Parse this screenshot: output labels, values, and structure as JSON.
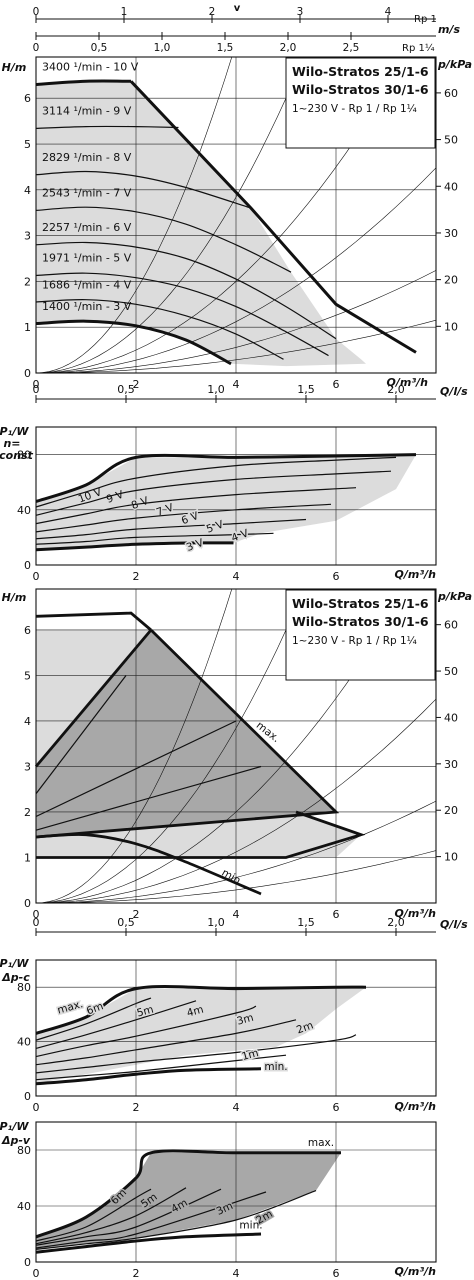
{
  "chart_data": [
    {
      "type": "line",
      "id": "velocity_scale",
      "xlabel": "v",
      "unit": "m/s",
      "rp1_ticks": [
        "0",
        "1",
        "2",
        "3",
        "4"
      ],
      "rp1_label": "Rp 1",
      "rp114_ticks": [
        "0",
        "0,5",
        "1,0",
        "1,5",
        "2,0",
        "2,5"
      ],
      "rp114_label": "Rp 1¼"
    },
    {
      "type": "line",
      "id": "hq_const_speed",
      "ylabel": "H/m",
      "ylabel2": "p/kPa",
      "xlabel": "Q/m³/h",
      "xlabel_top": "Q/l/s",
      "xlim": [
        0,
        8
      ],
      "ylim": [
        0,
        6.9
      ],
      "x_ticks": [
        "0",
        "2",
        "4",
        "6"
      ],
      "y_ticks": [
        "0",
        "1",
        "2",
        "3",
        "4",
        "5",
        "6"
      ],
      "kpa_ticks": [
        "10",
        "20",
        "30",
        "40",
        "50",
        "60"
      ],
      "ls_ticks": [
        "0",
        "0,5",
        "1,0",
        "1,5",
        "2,0"
      ],
      "legend_title": [
        "Wilo-Stratos 25/1-6",
        "Wilo-Stratos 30/1-6"
      ],
      "legend_sub": "1~230 V - Rp 1 / Rp 1¼",
      "series": [
        {
          "name": "3400 ¹/min - 10 V",
          "x": [
            0,
            1,
            1.9
          ],
          "y": [
            6.3,
            6.37,
            6.37
          ]
        },
        {
          "name": "3114 ¹/min - 9 V",
          "x": [
            0,
            1,
            2,
            2.85
          ],
          "y": [
            5.34,
            5.38,
            5.38,
            5.36
          ]
        },
        {
          "name": "2829 ¹/min - 8 V",
          "x": [
            0,
            1,
            2,
            3,
            4.3
          ],
          "y": [
            4.33,
            4.4,
            4.3,
            4.05,
            3.6
          ]
        },
        {
          "name": "2543 ¹/min - 7 V",
          "x": [
            0,
            1,
            2,
            3,
            4,
            4.75,
            5.1
          ],
          "y": [
            3.55,
            3.62,
            3.52,
            3.25,
            2.8,
            2.4,
            2.2
          ]
        },
        {
          "name": "2257 ¹/min - 6 V",
          "x": [
            0,
            1,
            2,
            3,
            4,
            5,
            6
          ],
          "y": [
            2.8,
            2.85,
            2.75,
            2.5,
            2.05,
            1.45,
            0.75
          ]
        },
        {
          "name": "1971 ¹/min - 5 V",
          "x": [
            0,
            1,
            2,
            3,
            4,
            5,
            5.85
          ],
          "y": [
            2.13,
            2.18,
            2.08,
            1.85,
            1.45,
            0.9,
            0.38
          ]
        },
        {
          "name": "1686 ¹/min - 4 V",
          "x": [
            0,
            1,
            2,
            3,
            4,
            4.95
          ],
          "y": [
            1.55,
            1.6,
            1.5,
            1.25,
            0.85,
            0.3
          ]
        },
        {
          "name": "1400 ¹/min - 3 V",
          "x": [
            0,
            1,
            2,
            3,
            3.9
          ],
          "y": [
            1.08,
            1.13,
            1.03,
            0.72,
            0.2
          ]
        }
      ]
    },
    {
      "type": "line",
      "id": "power_const_speed",
      "ylabel": "P₁/W",
      "ylabel_mode": [
        "n=",
        "const"
      ],
      "xlabel": "Q/m³/h",
      "xlim": [
        0,
        8
      ],
      "ylim": [
        0,
        100
      ],
      "x_ticks": [
        "0",
        "2",
        "4",
        "6"
      ],
      "y_ticks": [
        "0",
        "40",
        "80"
      ],
      "series": [
        {
          "name": "10 V",
          "x": [
            0,
            1,
            2,
            4,
            6,
            7.6
          ],
          "y": [
            46,
            58,
            78,
            78,
            79,
            80
          ]
        },
        {
          "name": "9 V",
          "x": [
            0,
            1,
            2,
            4,
            6,
            7.2
          ],
          "y": [
            42,
            53,
            63,
            72,
            76,
            78
          ]
        },
        {
          "name": "8 V",
          "x": [
            0,
            1,
            2,
            4,
            6,
            7.1
          ],
          "y": [
            36,
            45,
            54,
            62,
            66,
            68
          ]
        },
        {
          "name": "7 V",
          "x": [
            0,
            1,
            2,
            4,
            6.4
          ],
          "y": [
            30,
            37,
            44,
            51,
            56
          ]
        },
        {
          "name": "6 V",
          "x": [
            0,
            1,
            2,
            4,
            5.9
          ],
          "y": [
            24,
            29,
            34,
            40,
            44
          ]
        },
        {
          "name": "5 V",
          "x": [
            0,
            1,
            2,
            4,
            5.4
          ],
          "y": [
            19,
            22,
            26,
            30,
            33
          ]
        },
        {
          "name": "4 V",
          "x": [
            0,
            1,
            2,
            4,
            4.75
          ],
          "y": [
            15,
            17,
            20,
            22,
            23
          ]
        },
        {
          "name": "3 V",
          "x": [
            0,
            1,
            2,
            3.2,
            3.95
          ],
          "y": [
            11,
            13,
            15,
            16,
            16
          ]
        }
      ]
    },
    {
      "type": "area",
      "id": "hq_control_modes",
      "ylabel": "H/m",
      "ylabel2": "p/kPa",
      "xlabel": "Q/m³/h",
      "xlabel_top": "Q/l/s",
      "xlim": [
        0,
        8
      ],
      "ylim": [
        0,
        6.9
      ],
      "x_ticks": [
        "0",
        "2",
        "4",
        "6"
      ],
      "y_ticks": [
        "0",
        "1",
        "2",
        "3",
        "4",
        "5",
        "6"
      ],
      "kpa_ticks": [
        "10",
        "20",
        "30",
        "40",
        "50",
        "60"
      ],
      "ls_ticks": [
        "0",
        "0,5",
        "1,0",
        "1,5",
        "2,0"
      ],
      "legend_title": [
        "Wilo-Stratos 25/1-6",
        "Wilo-Stratos 30/1-6"
      ],
      "legend_sub": "1~230 V - Rp 1 / Rp 1¼",
      "annotations": [
        "max.",
        "min."
      ]
    },
    {
      "type": "line",
      "id": "power_dp_c",
      "ylabel": "P₁/W",
      "ylabel_mode": "Δp-c",
      "xlabel": "Q/m³/h",
      "xlim": [
        0,
        8
      ],
      "ylim": [
        0,
        100
      ],
      "x_ticks": [
        "0",
        "2",
        "4",
        "6"
      ],
      "y_ticks": [
        "0",
        "40",
        "80"
      ],
      "series": [
        {
          "name": "max.",
          "x": [
            0,
            1,
            2,
            4,
            6,
            6.6
          ],
          "y": [
            46,
            58,
            79,
            79,
            80,
            80
          ]
        },
        {
          "name": "6m",
          "x": [
            0,
            1,
            2,
            2.3
          ],
          "y": [
            41,
            53,
            68,
            72
          ]
        },
        {
          "name": "5m",
          "x": [
            0,
            1,
            2,
            3.2
          ],
          "y": [
            35,
            45,
            56,
            70
          ]
        },
        {
          "name": "4m",
          "x": [
            0,
            1,
            2,
            4,
            4.4
          ],
          "y": [
            29,
            37,
            44,
            61,
            66
          ]
        },
        {
          "name": "3m",
          "x": [
            0,
            1,
            2,
            4,
            5.2
          ],
          "y": [
            23,
            28,
            34,
            46,
            56
          ]
        },
        {
          "name": "2m",
          "x": [
            0,
            1,
            2,
            4,
            6,
            6.4
          ],
          "y": [
            17,
            21,
            25,
            32,
            41,
            45
          ]
        },
        {
          "name": "1m",
          "x": [
            0,
            1,
            2,
            4,
            5
          ],
          "y": [
            12,
            15,
            18,
            26,
            30
          ]
        },
        {
          "name": "min.",
          "x": [
            0,
            1,
            2,
            3,
            4.5
          ],
          "y": [
            9,
            12,
            16,
            19,
            20
          ]
        }
      ]
    },
    {
      "type": "line",
      "id": "power_dp_v",
      "ylabel": "P₁/W",
      "ylabel_mode": "Δp-v",
      "xlabel": "Q/m³/h",
      "xlim": [
        0,
        8
      ],
      "ylim": [
        0,
        100
      ],
      "x_ticks": [
        "0",
        "2",
        "4",
        "6"
      ],
      "y_ticks": [
        "0",
        "40",
        "80"
      ],
      "series": [
        {
          "name": "max.",
          "x": [
            0,
            1,
            2,
            2.3,
            4,
            6.1
          ],
          "y": [
            18,
            32,
            60,
            78,
            78,
            78
          ]
        },
        {
          "name": "6m",
          "x": [
            0,
            1,
            2,
            2.3
          ],
          "y": [
            15,
            25,
            46,
            52
          ]
        },
        {
          "name": "5m",
          "x": [
            0,
            1,
            2,
            3
          ],
          "y": [
            13,
            21,
            33,
            53
          ]
        },
        {
          "name": "4m",
          "x": [
            0,
            1,
            2,
            3.7
          ],
          "y": [
            12,
            18,
            25,
            52
          ]
        },
        {
          "name": "3m",
          "x": [
            0,
            1,
            2,
            4.6
          ],
          "y": [
            10,
            15,
            20,
            50
          ]
        },
        {
          "name": "2m",
          "x": [
            0,
            1,
            2,
            4,
            5.6
          ],
          "y": [
            9,
            13,
            17,
            30,
            51
          ]
        },
        {
          "name": "min.",
          "x": [
            0,
            1,
            2,
            3,
            4.5
          ],
          "y": [
            7,
            11,
            15,
            18,
            20
          ]
        }
      ]
    }
  ]
}
